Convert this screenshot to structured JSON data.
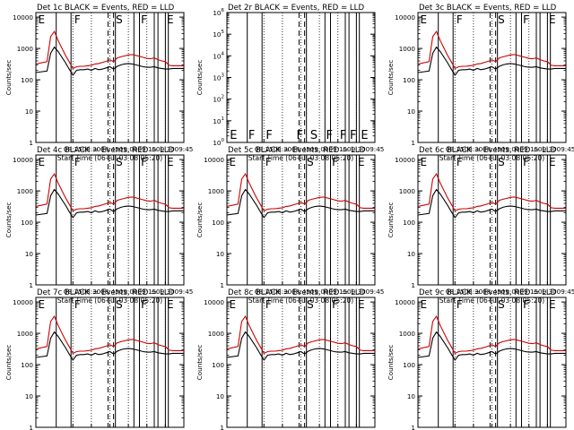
{
  "panels": [
    {
      "title": "Det 1c BLACK = Events, RED = LLD",
      "kind": "c"
    },
    {
      "title": "Det 2r BLACK = Events, RED = LLD",
      "kind": "r"
    },
    {
      "title": "Det 3c BLACK = Events, RED = LLD",
      "kind": "c"
    },
    {
      "title": "Det 4c BLACK = Events, RED = LLD",
      "kind": "c"
    },
    {
      "title": "Det 5c BLACK = Events, RED = LLD",
      "kind": "c"
    },
    {
      "title": "Det 6c BLACK = Events, RED = LLD",
      "kind": "c"
    },
    {
      "title": "Det 7c BLACK = Events, RED = LLD",
      "kind": "c"
    },
    {
      "title": "Det 8c BLACK = Events, RED = LLD",
      "kind": "c"
    },
    {
      "title": "Det 9c BLACK = Events, RED = LLD",
      "kind": "c"
    }
  ],
  "chart_data": {
    "type": "line",
    "xlabel": "Start Time (06-Jul-03 08:05:20)",
    "ylabel": "Counts/sec",
    "x_ticks": [
      "08:15",
      "08:30",
      "08:45",
      "09:00",
      "09:15",
      "09:30",
      "09:45"
    ],
    "y_ticks_c": [
      "1",
      "10",
      "100",
      "1000",
      "10000"
    ],
    "y_ticks_r": [
      "10^0",
      "10^1",
      "10^2",
      "10^3",
      "10^4",
      "10^5",
      "10^6"
    ],
    "xlim_min": [
      0,
      40
    ],
    "ylim_c": [
      1,
      14000
    ],
    "ylim_r": [
      1,
      1000000
    ],
    "series_colors": {
      "events": "#000000",
      "lld": "#cc0000"
    },
    "flag_letters_c": [
      "E",
      "F",
      "S",
      "F",
      "E"
    ],
    "flag_letters_r": [
      "E",
      "F",
      "F",
      "F",
      "S",
      "F",
      "F",
      "F",
      "E"
    ],
    "flags_min": [
      5.5,
      9.5,
      21.5,
      26.5,
      28.0,
      32.0,
      33.0,
      35.0,
      35.8
    ],
    "attenuator_dashed_min": [
      19.5,
      21.0
    ],
    "events_min": [
      0,
      3,
      4,
      5,
      6,
      8,
      9,
      10,
      11,
      12,
      13,
      14,
      15,
      16,
      17,
      18,
      19,
      20,
      21,
      22,
      23,
      24,
      25,
      26,
      27,
      28,
      29,
      30,
      31,
      32,
      33,
      34,
      35,
      36,
      37,
      38,
      39,
      40
    ],
    "events": [
      170,
      190,
      700,
      1100,
      800,
      350,
      220,
      140,
      200,
      210,
      210,
      220,
      200,
      230,
      210,
      220,
      240,
      260,
      220,
      270,
      300,
      320,
      330,
      320,
      300,
      280,
      260,
      250,
      250,
      260,
      240,
      230,
      220,
      220,
      230,
      230,
      230,
      230
    ],
    "lld_min": [
      0,
      3,
      4,
      5,
      6,
      8,
      9,
      10,
      11,
      12,
      13,
      14,
      15,
      16,
      17,
      18,
      19,
      20,
      21,
      22,
      23,
      24,
      25,
      26,
      27,
      28,
      29,
      30,
      31,
      32,
      33,
      34,
      35,
      36,
      37,
      38,
      39,
      40
    ],
    "lld": [
      320,
      380,
      2400,
      3500,
      1800,
      600,
      380,
      230,
      260,
      270,
      270,
      280,
      290,
      320,
      330,
      360,
      390,
      430,
      380,
      500,
      540,
      580,
      620,
      640,
      600,
      560,
      520,
      480,
      470,
      500,
      440,
      400,
      380,
      290,
      280,
      280,
      280,
      280
    ]
  }
}
